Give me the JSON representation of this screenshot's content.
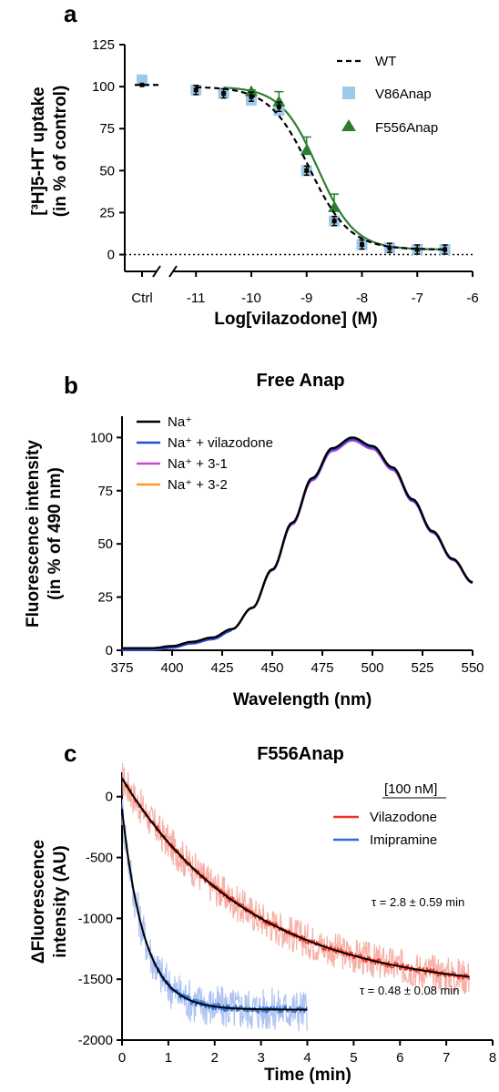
{
  "chart_data": [
    {
      "panel": "a",
      "type": "scatter",
      "title": "",
      "xlabel": "Log[vilazodone] (M)",
      "ylabel_line1": "[³H]5-HT uptake",
      "ylabel_line2": "(in % of control)",
      "xlim": [
        -11.5,
        -6
      ],
      "ylim": [
        -10,
        125
      ],
      "xticks": [
        -11,
        -10,
        -9,
        -8,
        -7,
        -6
      ],
      "yticks": [
        0,
        25,
        50,
        75,
        100,
        125
      ],
      "ctrl_label": "Ctrl",
      "legend_position": "top-right",
      "series": [
        {
          "name": "WT",
          "style": "dashed-line",
          "color": "#000000",
          "points": [
            [
              -11,
              98
            ],
            [
              -10.5,
              96
            ],
            [
              -10,
              94
            ],
            [
              -9.5,
              88
            ],
            [
              -9,
              50
            ],
            [
              -8.5,
              20
            ],
            [
              -8,
              6
            ],
            [
              -7.5,
              4
            ],
            [
              -7,
              3
            ],
            [
              -6.5,
              3
            ]
          ],
          "ctrl": 101,
          "fit": {
            "top": 100,
            "bottom": 3,
            "logIC50": -8.95,
            "hill": 1.2
          }
        },
        {
          "name": "V86Anap",
          "style": "square",
          "color": "#9ecae8",
          "points": [
            [
              -11,
              98
            ],
            [
              -10.5,
              96
            ],
            [
              -10,
              92
            ],
            [
              -9.5,
              86
            ],
            [
              -9,
              50
            ],
            [
              -8.5,
              20
            ],
            [
              -8,
              6
            ],
            [
              -7.5,
              4
            ],
            [
              -7,
              3
            ],
            [
              -6.5,
              3
            ]
          ],
          "ctrl": 104
        },
        {
          "name": "F556Anap",
          "style": "triangle",
          "color": "#2e7d32",
          "points": [
            [
              -10,
              97
            ],
            [
              -9.5,
              91
            ],
            [
              -9,
              62
            ],
            [
              -8.5,
              28
            ]
          ],
          "errors": [
            1,
            6,
            8,
            8
          ],
          "ctrl": 101,
          "fit": {
            "top": 100,
            "bottom": 3,
            "logIC50": -8.8,
            "hill": 1.3
          }
        }
      ]
    },
    {
      "panel": "b",
      "type": "line",
      "title": "Free Anap",
      "xlabel": "Wavelength (nm)",
      "ylabel_line1": "Fluorescence intensity",
      "ylabel_line2": "(in % of 490 nm)",
      "xlim": [
        375,
        550
      ],
      "ylim": [
        0,
        110
      ],
      "xticks": [
        375,
        400,
        425,
        450,
        475,
        500,
        525,
        550
      ],
      "yticks": [
        0,
        25,
        50,
        75,
        100
      ],
      "legend_position": "top-left",
      "series": [
        {
          "name": "Na⁺",
          "color": "#000000"
        },
        {
          "name": "Na⁺ + vilazodone",
          "color": "#1f4fd8"
        },
        {
          "name": "Na⁺ + 3-1",
          "color": "#cc44dd"
        },
        {
          "name": "Na⁺ + 3-2",
          "color": "#ff9922"
        }
      ],
      "x": [
        375,
        390,
        400,
        410,
        420,
        430,
        440,
        450,
        460,
        470,
        480,
        490,
        500,
        510,
        520,
        530,
        540,
        550
      ],
      "y": [
        1,
        1,
        2,
        4,
        6,
        10,
        20,
        38,
        60,
        81,
        95,
        100,
        96,
        86,
        71,
        56,
        43,
        32
      ]
    },
    {
      "panel": "c",
      "type": "line",
      "title": "F556Anap",
      "xlabel": "Time (min)",
      "ylabel_line1": "ΔFluorescence",
      "ylabel_line2": "intensity (AU)",
      "xlim": [
        0,
        8
      ],
      "ylim": [
        -2000,
        200
      ],
      "xticks": [
        0,
        1,
        2,
        3,
        4,
        5,
        6,
        7,
        8
      ],
      "yticks": [
        0,
        -500,
        -1000,
        -1500,
        -2000
      ],
      "legend_header": "[100 nM]",
      "legend_position": "top-right",
      "series": [
        {
          "name": "Vilazodone",
          "color": "#ee3322",
          "band_color": "#f6b0a6",
          "tmax": 7.5,
          "y0": 150,
          "plateau": -1600,
          "tau": 2.8,
          "annotation": "τ = 2.8 ± 0.59 min"
        },
        {
          "name": "Imipramine",
          "color": "#2f6fd6",
          "band_color": "#aec3f2",
          "tmax": 4,
          "y0": -100,
          "plateau": -1750,
          "tau": 0.48,
          "annotation": "τ = 0.48 ± 0.08 min"
        }
      ]
    }
  ]
}
